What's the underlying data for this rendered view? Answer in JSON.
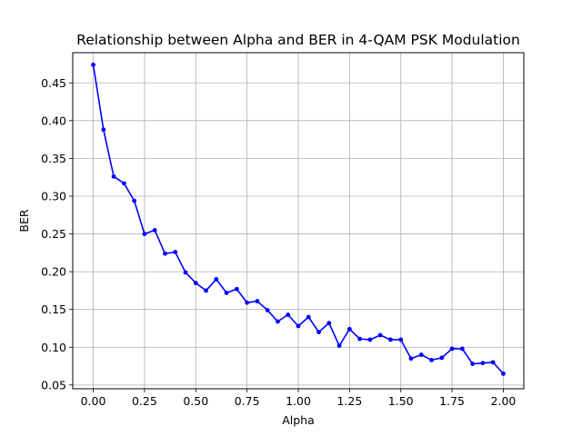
{
  "chart_data": {
    "type": "line",
    "title": "Relationship between Alpha and BER in 4-QAM PSK Modulation",
    "xlabel": "Alpha",
    "ylabel": "BER",
    "xlim": [
      -0.1,
      2.1
    ],
    "ylim": [
      0.045,
      0.49
    ],
    "xticks": [
      "0.00",
      "0.25",
      "0.50",
      "0.75",
      "1.00",
      "1.25",
      "1.50",
      "1.75",
      "2.00"
    ],
    "yticks": [
      "0.05",
      "0.10",
      "0.15",
      "0.20",
      "0.25",
      "0.30",
      "0.35",
      "0.40",
      "0.45"
    ],
    "grid": true,
    "legend": "none",
    "series": [
      {
        "color": "#0000ff",
        "marker": "circle",
        "x": [
          0.0,
          0.05,
          0.1,
          0.15,
          0.2,
          0.25,
          0.3,
          0.35,
          0.4,
          0.45,
          0.5,
          0.55,
          0.6,
          0.65,
          0.7,
          0.75,
          0.8,
          0.85,
          0.9,
          0.95,
          1.0,
          1.05,
          1.1,
          1.15,
          1.2,
          1.25,
          1.3,
          1.35,
          1.4,
          1.45,
          1.5,
          1.55,
          1.6,
          1.65,
          1.7,
          1.75,
          1.8,
          1.85,
          1.9,
          1.95,
          2.0
        ],
        "y": [
          0.474,
          0.388,
          0.326,
          0.317,
          0.294,
          0.25,
          0.255,
          0.224,
          0.226,
          0.199,
          0.185,
          0.175,
          0.19,
          0.172,
          0.177,
          0.159,
          0.161,
          0.149,
          0.134,
          0.143,
          0.128,
          0.14,
          0.12,
          0.132,
          0.102,
          0.124,
          0.111,
          0.11,
          0.116,
          0.11,
          0.11,
          0.085,
          0.09,
          0.083,
          0.086,
          0.098,
          0.098,
          0.078,
          0.079,
          0.08,
          0.065
        ]
      }
    ]
  }
}
